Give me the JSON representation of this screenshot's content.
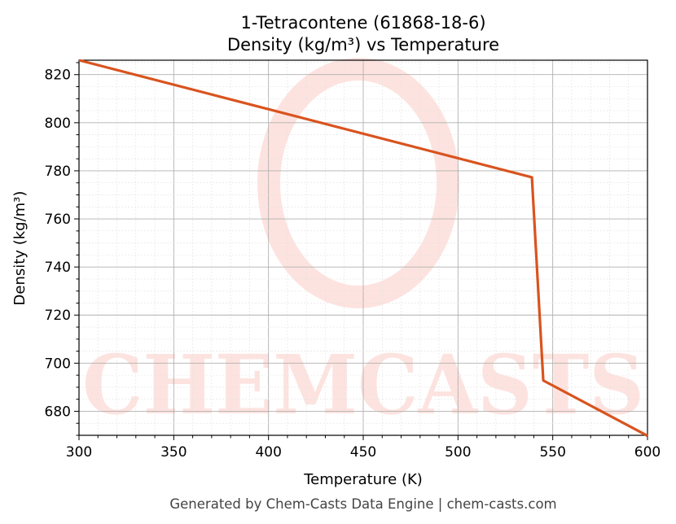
{
  "chart_data": {
    "type": "line",
    "title": "1-Tetracontene (61868-18-6)",
    "subtitle": "Density (kg/m³) vs Temperature",
    "xlabel": "Temperature (K)",
    "ylabel": "Density (kg/m³)",
    "xlim": [
      300,
      600
    ],
    "ylim": [
      670,
      826
    ],
    "xticks": [
      300,
      350,
      400,
      450,
      500,
      550,
      600
    ],
    "yticks": [
      680,
      700,
      720,
      740,
      760,
      780,
      800,
      820
    ],
    "grid": true,
    "series": [
      {
        "name": "Density",
        "color": "#d9531e",
        "x": [
          300,
          539,
          545,
          600
        ],
        "y": [
          826,
          777.3,
          692.8,
          669.8
        ]
      }
    ]
  },
  "watermark": "CHEMCASTS",
  "footer": "Generated by Chem-Casts Data Engine | chem-casts.com"
}
